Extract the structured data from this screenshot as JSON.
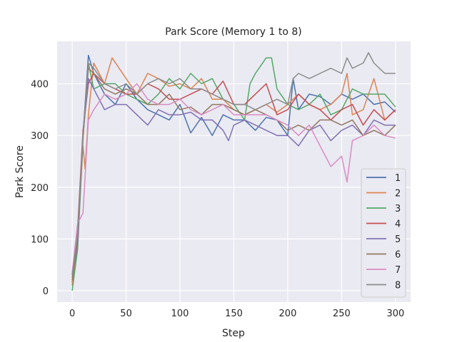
{
  "chart_data": {
    "type": "line",
    "title": "Park Score (Memory 1 to 8)",
    "xlabel": "Step",
    "ylabel": "Park Score",
    "xlim": [
      -14,
      314
    ],
    "ylim": [
      -22,
      482
    ],
    "xticks": [
      0,
      50,
      100,
      150,
      200,
      250,
      300
    ],
    "yticks": [
      0,
      100,
      200,
      300,
      400
    ],
    "grid": true,
    "legend_position": "lower-right",
    "series": [
      {
        "name": "1",
        "color": "#4c72b0",
        "x": [
          0,
          5,
          10,
          15,
          20,
          30,
          40,
          50,
          60,
          70,
          80,
          90,
          100,
          110,
          120,
          130,
          140,
          150,
          160,
          170,
          180,
          190,
          200,
          205,
          210,
          220,
          230,
          240,
          250,
          260,
          270,
          280,
          290,
          300
        ],
        "y": [
          15,
          90,
          300,
          455,
          420,
          380,
          360,
          400,
          370,
          350,
          340,
          330,
          360,
          305,
          335,
          300,
          340,
          330,
          330,
          310,
          335,
          330,
          300,
          410,
          350,
          380,
          375,
          360,
          380,
          370,
          380,
          360,
          365,
          345
        ]
      },
      {
        "name": "2",
        "color": "#dd8452",
        "x": [
          0,
          5,
          10,
          12,
          15,
          20,
          30,
          37,
          50,
          60,
          70,
          80,
          90,
          100,
          110,
          120,
          130,
          140,
          150,
          160,
          170,
          180,
          190,
          200,
          210,
          220,
          230,
          240,
          250,
          255,
          260,
          270,
          280,
          290,
          300
        ],
        "y": [
          10,
          100,
          280,
          235,
          340,
          440,
          400,
          450,
          410,
          380,
          420,
          410,
          395,
          400,
          390,
          410,
          370,
          370,
          350,
          340,
          350,
          360,
          345,
          360,
          380,
          360,
          350,
          360,
          380,
          420,
          340,
          350,
          410,
          330,
          350
        ]
      },
      {
        "name": "3",
        "color": "#55a868",
        "x": [
          0,
          5,
          10,
          15,
          20,
          30,
          40,
          50,
          60,
          70,
          80,
          90,
          100,
          110,
          120,
          130,
          140,
          150,
          160,
          165,
          170,
          180,
          185,
          190,
          200,
          210,
          220,
          230,
          240,
          250,
          260,
          270,
          280,
          290,
          300
        ],
        "y": [
          0,
          80,
          290,
          440,
          390,
          400,
          400,
          380,
          370,
          360,
          380,
          410,
          390,
          420,
          400,
          410,
          370,
          360,
          330,
          400,
          420,
          450,
          450,
          390,
          360,
          350,
          360,
          380,
          340,
          350,
          390,
          380,
          380,
          380,
          355
        ]
      },
      {
        "name": "4",
        "color": "#c44e52",
        "x": [
          0,
          5,
          10,
          15,
          20,
          30,
          40,
          50,
          60,
          70,
          80,
          90,
          100,
          110,
          120,
          130,
          140,
          150,
          160,
          170,
          180,
          190,
          200,
          210,
          220,
          230,
          240,
          250,
          260,
          270,
          280,
          290,
          300
        ],
        "y": [
          30,
          120,
          310,
          400,
          420,
          400,
          390,
          380,
          380,
          400,
          390,
          370,
          370,
          380,
          390,
          380,
          405,
          360,
          360,
          380,
          400,
          340,
          350,
          380,
          360,
          350,
          330,
          350,
          360,
          320,
          350,
          330,
          350
        ]
      },
      {
        "name": "5",
        "color": "#8172b3",
        "x": [
          0,
          5,
          10,
          15,
          20,
          30,
          40,
          50,
          60,
          70,
          80,
          90,
          100,
          110,
          120,
          130,
          140,
          145,
          150,
          160,
          170,
          180,
          190,
          200,
          210,
          220,
          230,
          240,
          250,
          260,
          270,
          280,
          290,
          300
        ],
        "y": [
          25,
          90,
          300,
          410,
          390,
          350,
          360,
          360,
          340,
          320,
          350,
          340,
          340,
          345,
          330,
          330,
          310,
          290,
          320,
          330,
          320,
          310,
          300,
          300,
          280,
          310,
          320,
          290,
          310,
          320,
          300,
          330,
          320,
          320
        ]
      },
      {
        "name": "6",
        "color": "#937860",
        "x": [
          0,
          5,
          10,
          15,
          20,
          30,
          40,
          50,
          60,
          70,
          80,
          90,
          100,
          110,
          120,
          130,
          140,
          150,
          160,
          170,
          180,
          190,
          200,
          210,
          220,
          230,
          240,
          250,
          260,
          270,
          280,
          290,
          300
        ],
        "y": [
          20,
          100,
          300,
          430,
          420,
          390,
          380,
          390,
          380,
          360,
          360,
          380,
          350,
          355,
          340,
          360,
          360,
          350,
          340,
          350,
          340,
          330,
          310,
          320,
          310,
          330,
          330,
          320,
          330,
          300,
          310,
          300,
          320
        ]
      },
      {
        "name": "7",
        "color": "#da8bc3",
        "x": [
          0,
          5,
          10,
          15,
          20,
          30,
          40,
          50,
          60,
          70,
          80,
          90,
          100,
          110,
          120,
          130,
          140,
          150,
          160,
          170,
          180,
          190,
          200,
          210,
          220,
          230,
          235,
          240,
          245,
          250,
          255,
          260,
          270,
          280,
          290,
          300
        ],
        "y": [
          35,
          130,
          150,
          330,
          350,
          380,
          370,
          380,
          400,
          370,
          360,
          360,
          370,
          350,
          340,
          350,
          360,
          340,
          340,
          340,
          340,
          330,
          320,
          300,
          320,
          280,
          260,
          240,
          250,
          260,
          210,
          290,
          300,
          320,
          300,
          295
        ]
      },
      {
        "name": "8",
        "color": "#8c8c8c",
        "x": [
          0,
          5,
          10,
          15,
          20,
          30,
          40,
          50,
          60,
          70,
          80,
          90,
          100,
          110,
          120,
          130,
          140,
          150,
          160,
          170,
          180,
          190,
          200,
          205,
          210,
          220,
          230,
          240,
          250,
          255,
          260,
          270,
          275,
          280,
          290,
          300
        ],
        "y": [
          30,
          110,
          300,
          440,
          430,
          400,
          390,
          400,
          380,
          400,
          410,
          400,
          410,
          390,
          390,
          380,
          370,
          360,
          360,
          350,
          360,
          370,
          360,
          410,
          420,
          410,
          420,
          430,
          420,
          450,
          430,
          440,
          460,
          440,
          420,
          420
        ]
      }
    ]
  }
}
